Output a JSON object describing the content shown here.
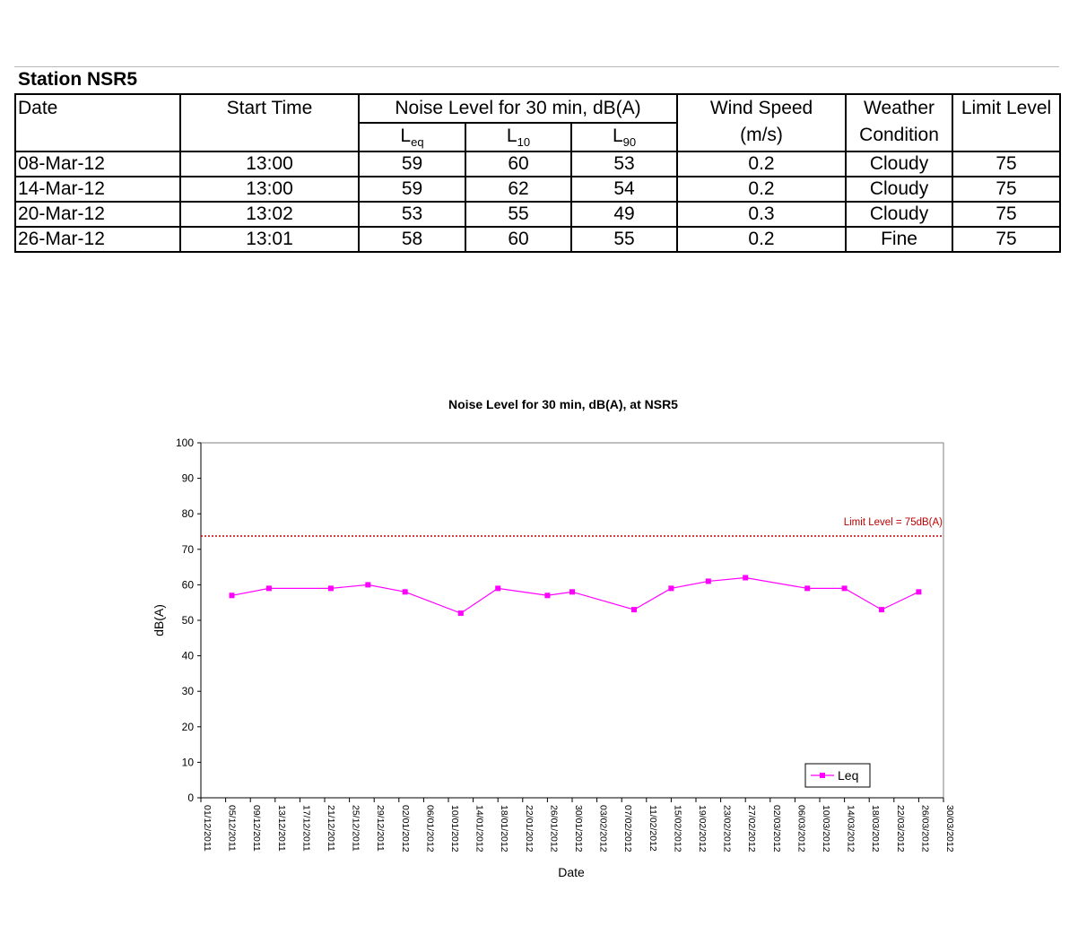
{
  "table": {
    "station_title": "Station NSR5",
    "headers": {
      "date": "Date",
      "start_time": "Start Time",
      "noise_group": "Noise Level for 30 min, dB(A)",
      "leq_main": "L",
      "leq_sub": "eq",
      "l10_main": "L",
      "l10_sub": "10",
      "l90_main": "L",
      "l90_sub": "90",
      "wind_line1": "Wind Speed",
      "wind_line2": "(m/s)",
      "weather_line1": "Weather",
      "weather_line2": "Condition",
      "limit": "Limit Level"
    },
    "rows": [
      {
        "date": "08-Mar-12",
        "start": "13:00",
        "leq": "59",
        "l10": "60",
        "l90": "53",
        "wind": "0.2",
        "weather": "Cloudy",
        "limit": "75"
      },
      {
        "date": "14-Mar-12",
        "start": "13:00",
        "leq": "59",
        "l10": "62",
        "l90": "54",
        "wind": "0.2",
        "weather": "Cloudy",
        "limit": "75"
      },
      {
        "date": "20-Mar-12",
        "start": "13:02",
        "leq": "53",
        "l10": "55",
        "l90": "49",
        "wind": "0.3",
        "weather": "Cloudy",
        "limit": "75"
      },
      {
        "date": "26-Mar-12",
        "start": "13:01",
        "leq": "58",
        "l10": "60",
        "l90": "55",
        "wind": "0.2",
        "weather": "Fine",
        "limit": "75"
      }
    ]
  },
  "chart_data": {
    "type": "line",
    "title": "Noise Level for 30 min, dB(A), at NSR5",
    "xlabel": "Date",
    "ylabel": "dB(A)",
    "ylim": [
      0,
      100
    ],
    "yticks": [
      0,
      10,
      20,
      30,
      40,
      50,
      60,
      70,
      80,
      90,
      100
    ],
    "x_axis_dates": [
      "01/12/2011",
      "05/12/2011",
      "09/12/2011",
      "13/12/2011",
      "17/12/2011",
      "21/12/2011",
      "25/12/2011",
      "29/12/2011",
      "02/01/2012",
      "06/01/2012",
      "10/01/2012",
      "14/01/2012",
      "18/01/2012",
      "22/01/2012",
      "26/01/2012",
      "30/01/2012",
      "03/02/2012",
      "07/02/2012",
      "11/02/2012",
      "15/02/2012",
      "19/02/2012",
      "23/02/2012",
      "27/02/2012",
      "02/03/2012",
      "06/03/2012",
      "10/03/2012",
      "14/03/2012",
      "18/03/2012",
      "22/03/2012",
      "26/03/2012",
      "30/03/2012"
    ],
    "x_tick_labels": [
      "01/12/2011",
      "05/12/2011",
      "09/12/2011",
      "13/12/2011",
      "17/12/2011",
      "21/12/2011",
      "25/12/2011",
      "29/12/2011",
      "02/01/2012",
      "06/01/2012",
      "10/01/2012",
      "14/01/2012",
      "18/01/2012",
      "22/01/2012",
      "26/01/2012",
      "30/01/2012",
      "03/02/2012",
      "07/02/2012",
      "11/02/2012",
      "15/02/2012",
      "19/02/2012",
      "23/02/2012",
      "27/02/2012",
      "02/03/2012",
      "06/03/2012",
      "10/03/2012",
      "14/03/2012",
      "18/03/2012",
      "22/03/2012",
      "26/03/2012",
      "30/03/2012"
    ],
    "series": [
      {
        "name": "Leq",
        "color": "#ff00ff",
        "points": [
          {
            "x": "06/12/2011",
            "y": 57
          },
          {
            "x": "12/12/2011",
            "y": 59
          },
          {
            "x": "22/12/2011",
            "y": 59
          },
          {
            "x": "28/12/2011",
            "y": 60
          },
          {
            "x": "03/01/2012",
            "y": 58
          },
          {
            "x": "12/01/2012",
            "y": 52
          },
          {
            "x": "18/01/2012",
            "y": 59
          },
          {
            "x": "26/01/2012",
            "y": 57
          },
          {
            "x": "30/01/2012",
            "y": 58
          },
          {
            "x": "09/02/2012",
            "y": 53
          },
          {
            "x": "15/02/2012",
            "y": 59
          },
          {
            "x": "21/02/2012",
            "y": 61
          },
          {
            "x": "27/02/2012",
            "y": 62
          },
          {
            "x": "08/03/2012",
            "y": 59
          },
          {
            "x": "14/03/2012",
            "y": 59
          },
          {
            "x": "20/03/2012",
            "y": 53
          },
          {
            "x": "26/03/2012",
            "y": 58
          }
        ]
      }
    ],
    "limit_line": {
      "value": 75,
      "label": "Limit Level = 75dB(A)",
      "color": "#c00000"
    },
    "grid": false,
    "legend_position": "bottom-right"
  }
}
